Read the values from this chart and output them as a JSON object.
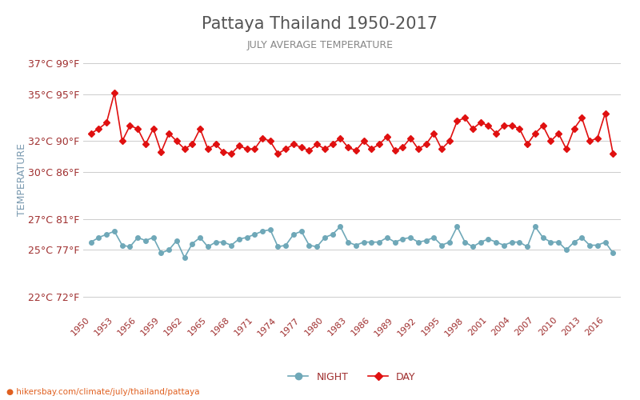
{
  "title": "Pattaya Thailand 1950-2017",
  "subtitle": "JULY AVERAGE TEMPERATURE",
  "ylabel": "TEMPERATURE",
  "footer": "hikersbay.com/climate/july/thailand/pattaya",
  "years": [
    1950,
    1951,
    1952,
    1953,
    1954,
    1955,
    1956,
    1957,
    1958,
    1959,
    1960,
    1961,
    1962,
    1963,
    1964,
    1965,
    1966,
    1967,
    1968,
    1969,
    1970,
    1971,
    1972,
    1973,
    1974,
    1975,
    1976,
    1977,
    1978,
    1979,
    1980,
    1981,
    1982,
    1983,
    1984,
    1985,
    1986,
    1987,
    1988,
    1989,
    1990,
    1991,
    1992,
    1993,
    1994,
    1995,
    1996,
    1997,
    1998,
    1999,
    2000,
    2001,
    2002,
    2003,
    2004,
    2005,
    2006,
    2007,
    2008,
    2009,
    2010,
    2011,
    2012,
    2013,
    2014,
    2015,
    2016,
    2017
  ],
  "day_temps": [
    32.5,
    32.8,
    33.2,
    35.1,
    32.0,
    33.0,
    32.8,
    31.8,
    32.8,
    31.3,
    32.5,
    32.0,
    31.5,
    31.8,
    32.8,
    31.5,
    31.8,
    31.3,
    31.2,
    31.7,
    31.5,
    31.5,
    32.2,
    32.0,
    31.2,
    31.5,
    31.8,
    31.6,
    31.4,
    31.8,
    31.5,
    31.8,
    32.2,
    31.6,
    31.4,
    32.0,
    31.5,
    31.8,
    32.3,
    31.4,
    31.6,
    32.2,
    31.5,
    31.8,
    32.5,
    31.5,
    32.0,
    33.3,
    33.5,
    32.8,
    33.2,
    33.0,
    32.5,
    33.0,
    33.0,
    32.8,
    31.8,
    32.5,
    33.0,
    32.0,
    32.5,
    31.5,
    32.8,
    33.5,
    32.0,
    32.2,
    33.8,
    31.2
  ],
  "night_temps": [
    25.5,
    25.8,
    26.0,
    26.2,
    25.3,
    25.2,
    25.8,
    25.6,
    25.8,
    24.8,
    25.0,
    25.6,
    24.5,
    25.4,
    25.8,
    25.2,
    25.5,
    25.5,
    25.3,
    25.7,
    25.8,
    26.0,
    26.2,
    26.3,
    25.2,
    25.3,
    26.0,
    26.2,
    25.3,
    25.2,
    25.8,
    26.0,
    26.5,
    25.5,
    25.3,
    25.5,
    25.5,
    25.5,
    25.8,
    25.5,
    25.7,
    25.8,
    25.5,
    25.6,
    25.8,
    25.3,
    25.5,
    26.5,
    25.5,
    25.2,
    25.5,
    25.7,
    25.5,
    25.3,
    25.5,
    25.5,
    25.2,
    26.5,
    25.8,
    25.5,
    25.5,
    25.0,
    25.5,
    25.8,
    25.3,
    25.3,
    25.5,
    24.8
  ],
  "day_color": "#e01010",
  "night_color": "#6fa8b8",
  "day_marker": "D",
  "night_marker": "o",
  "bg_color": "#ffffff",
  "grid_color": "#cccccc",
  "tick_color": "#a03030",
  "yticks_c": [
    22,
    25,
    27,
    30,
    32,
    35,
    37
  ],
  "yticks_f": [
    72,
    77,
    81,
    86,
    90,
    95,
    99
  ],
  "ylim": [
    21,
    38
  ],
  "title_color": "#555555",
  "subtitle_color": "#888888",
  "ylabel_color": "#7a9ab0",
  "footer_color": "#e06020",
  "marker_size_day": 4,
  "marker_size_night": 4,
  "linewidth": 1.2
}
